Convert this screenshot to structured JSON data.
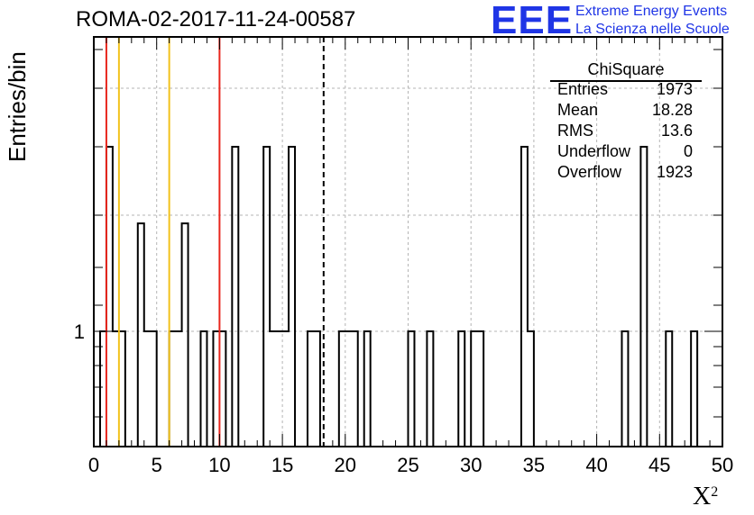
{
  "chart_data": {
    "type": "bar",
    "title": "ROMA-02-2017-11-24-00587",
    "xlabel": "X",
    "xlabel_superscript": "2",
    "ylabel": "Entries/bin",
    "xlim": [
      0,
      50
    ],
    "x_ticks": [
      "0",
      "5",
      "10",
      "15",
      "20",
      "25",
      "30",
      "35",
      "40",
      "45",
      "50"
    ],
    "y_scale": "log",
    "y_ticks": [
      "1"
    ],
    "grid": true,
    "bin_width": 0.5,
    "bins": [
      {
        "x": 0.5,
        "count": 1
      },
      {
        "x": 1.0,
        "count": 2
      },
      {
        "x": 1.5,
        "count": 1
      },
      {
        "x": 2.0,
        "count": 1
      },
      {
        "x": 3.5,
        "count": 1.5
      },
      {
        "x": 4.0,
        "count": 1
      },
      {
        "x": 4.5,
        "count": 1
      },
      {
        "x": 6.0,
        "count": 1
      },
      {
        "x": 6.5,
        "count": 1
      },
      {
        "x": 7.0,
        "count": 1.5
      },
      {
        "x": 8.5,
        "count": 1
      },
      {
        "x": 9.5,
        "count": 1
      },
      {
        "x": 10.0,
        "count": 1
      },
      {
        "x": 11.0,
        "count": 2
      },
      {
        "x": 13.5,
        "count": 2
      },
      {
        "x": 14.0,
        "count": 1
      },
      {
        "x": 14.5,
        "count": 1
      },
      {
        "x": 15.0,
        "count": 1
      },
      {
        "x": 15.5,
        "count": 2
      },
      {
        "x": 17.0,
        "count": 1
      },
      {
        "x": 17.5,
        "count": 1
      },
      {
        "x": 19.5,
        "count": 1
      },
      {
        "x": 20.0,
        "count": 1
      },
      {
        "x": 20.5,
        "count": 1
      },
      {
        "x": 21.5,
        "count": 1
      },
      {
        "x": 25.0,
        "count": 1
      },
      {
        "x": 26.5,
        "count": 1
      },
      {
        "x": 29.0,
        "count": 1
      },
      {
        "x": 30.0,
        "count": 1
      },
      {
        "x": 30.5,
        "count": 1
      },
      {
        "x": 34.0,
        "count": 2
      },
      {
        "x": 34.5,
        "count": 1
      },
      {
        "x": 42.0,
        "count": 1
      },
      {
        "x": 43.5,
        "count": 2
      },
      {
        "x": 45.5,
        "count": 1
      },
      {
        "x": 47.5,
        "count": 1
      }
    ],
    "vertical_lines": [
      {
        "x": 1.0,
        "color": "#e8261d",
        "style": "solid"
      },
      {
        "x": 2.0,
        "color": "#f2c21c",
        "style": "solid"
      },
      {
        "x": 6.0,
        "color": "#f2c21c",
        "style": "solid"
      },
      {
        "x": 10.0,
        "color": "#e8261d",
        "style": "solid"
      },
      {
        "x": 18.28,
        "color": "#000000",
        "style": "dashed"
      }
    ],
    "stats_box": {
      "title": "ChiSquare",
      "rows": [
        {
          "label": "Entries",
          "value": "1973"
        },
        {
          "label": "Mean",
          "value": "18.28"
        },
        {
          "label": "RMS",
          "value": "13.6"
        },
        {
          "label": "Underflow",
          "value": "0"
        },
        {
          "label": "Overflow",
          "value": "1923"
        }
      ]
    }
  },
  "logo": {
    "mark": "EEE",
    "line1": "Extreme Energy Events",
    "line2": "La Scienza nelle Scuole",
    "color": "#1f35e6"
  }
}
